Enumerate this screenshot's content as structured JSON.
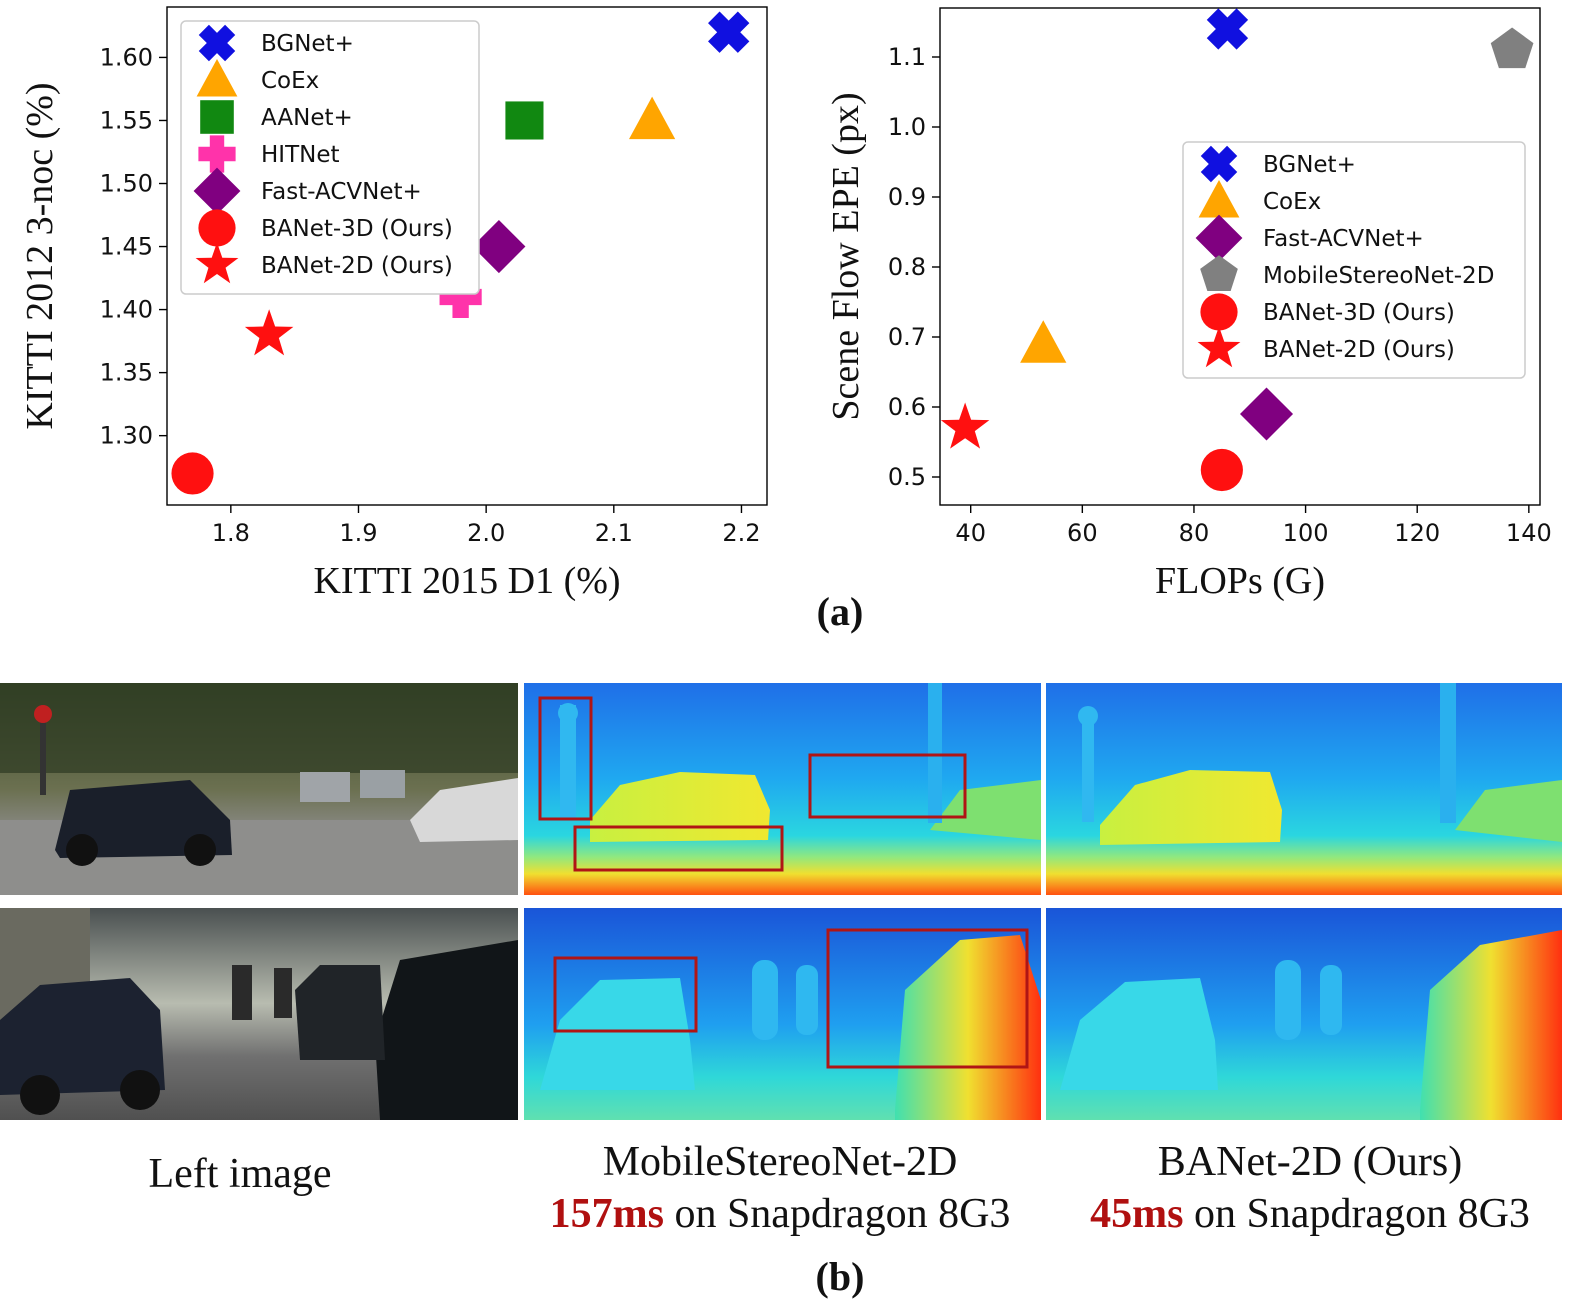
{
  "chart_data": [
    {
      "type": "scatter",
      "title": "",
      "xlabel": "KITTI 2015 D1 (%)",
      "ylabel": "KITTI 2012 3-noc (%)",
      "xlim": [
        1.75,
        2.22
      ],
      "ylim": [
        1.245,
        1.64
      ],
      "xticks": [
        "1.8",
        "1.9",
        "2.0",
        "2.1",
        "2.2"
      ],
      "yticks": [
        "1.30",
        "1.35",
        "1.40",
        "1.45",
        "1.50",
        "1.55",
        "1.60"
      ],
      "legend_position": "top-left",
      "series": [
        {
          "name": "BGNet+",
          "marker": "x",
          "color": "#1010e0",
          "x": 2.19,
          "y": 1.62
        },
        {
          "name": "CoEx",
          "marker": "triangle",
          "color": "#ffa500",
          "x": 2.13,
          "y": 1.55
        },
        {
          "name": "AANet+",
          "marker": "square",
          "color": "#118811",
          "x": 2.03,
          "y": 1.55
        },
        {
          "name": "HITNet",
          "marker": "plus",
          "color": "#ff33aa",
          "x": 1.98,
          "y": 1.41
        },
        {
          "name": "Fast-ACVNet+",
          "marker": "diamond",
          "color": "#800080",
          "x": 2.01,
          "y": 1.45
        },
        {
          "name": "BANet-3D (Ours)",
          "marker": "circle",
          "color": "#ff1010",
          "x": 1.77,
          "y": 1.27
        },
        {
          "name": "BANet-2D (Ours)",
          "marker": "star",
          "color": "#ff1010",
          "x": 1.83,
          "y": 1.38
        }
      ]
    },
    {
      "type": "scatter",
      "title": "",
      "xlabel": "FLOPs (G)",
      "ylabel": "Scene Flow EPE (px)",
      "xlim": [
        34.5,
        142
      ],
      "ylim": [
        0.46,
        1.17
      ],
      "xticks": [
        "40",
        "60",
        "80",
        "100",
        "120",
        "140"
      ],
      "yticks": [
        "0.5",
        "0.6",
        "0.7",
        "0.8",
        "0.9",
        "1.0",
        "1.1"
      ],
      "legend_position": "center-right",
      "series": [
        {
          "name": "BGNet+",
          "marker": "x",
          "color": "#1010e0",
          "x": 86,
          "y": 1.14
        },
        {
          "name": "CoEx",
          "marker": "triangle",
          "color": "#ffa500",
          "x": 53,
          "y": 0.69
        },
        {
          "name": "Fast-ACVNet+",
          "marker": "diamond",
          "color": "#800080",
          "x": 93,
          "y": 0.59
        },
        {
          "name": "MobileStereoNet-2D",
          "marker": "pentagon",
          "color": "#808080",
          "x": 137,
          "y": 1.11
        },
        {
          "name": "BANet-3D (Ours)",
          "marker": "circle",
          "color": "#ff1010",
          "x": 85,
          "y": 0.51
        },
        {
          "name": "BANet-2D (Ours)",
          "marker": "star",
          "color": "#ff1010",
          "x": 39,
          "y": 0.57
        }
      ]
    }
  ],
  "captions": {
    "a": "(a)",
    "b": "(b)",
    "left_image": "Left image",
    "mobilestereo_name": "MobileStereoNet-2D",
    "mobilestereo_time": "157ms",
    "mobilestereo_device": " on Snapdragon 8G3",
    "banet_name": "BANet-2D (Ours)",
    "banet_time": "45ms",
    "banet_device": " on Snapdragon 8G3"
  },
  "colors": {
    "highlight_box": "#b01515",
    "time_text": "#b01010"
  }
}
